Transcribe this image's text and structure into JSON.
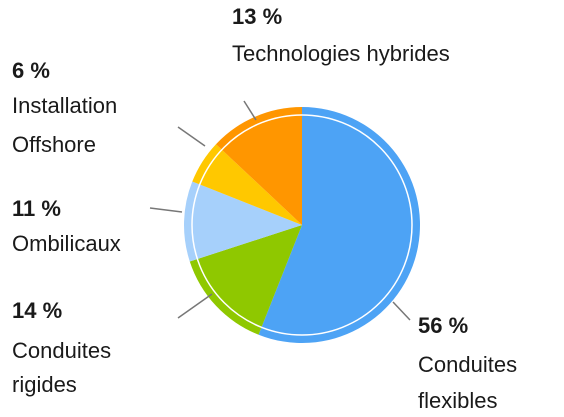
{
  "chart_data": {
    "type": "pie",
    "categories": [
      "Conduites flexibles",
      "Conduites rigides",
      "Ombilicaux",
      "Installation Offshore",
      "Technologies hybrides"
    ],
    "values": [
      56,
      14,
      11,
      6,
      13
    ],
    "value_labels": [
      "56 %",
      "14 %",
      "11 %",
      "6 %",
      "13 %"
    ],
    "colors": [
      "#4da3f5",
      "#8fc800",
      "#a6d0fb",
      "#ffc800",
      "#ff9600"
    ]
  }
}
